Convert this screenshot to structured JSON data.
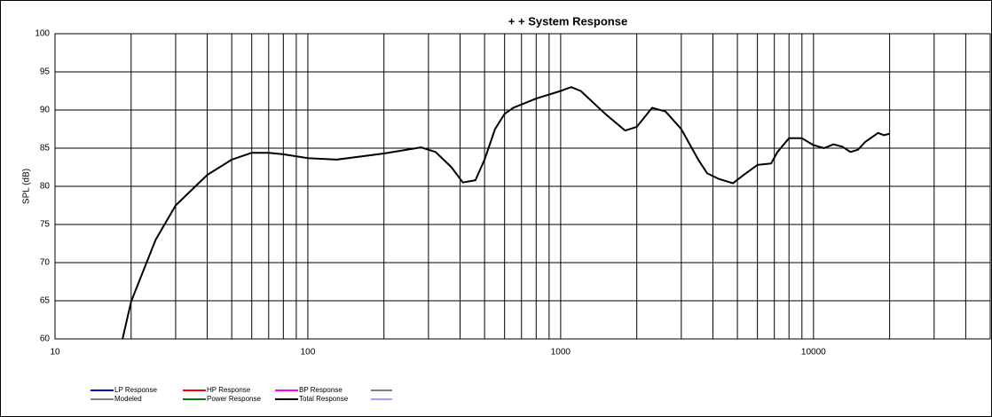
{
  "chart_data": {
    "type": "line",
    "title": "+ +  System Response",
    "ylabel": "SPL (dB)",
    "xscale": "log",
    "xlim": [
      10,
      50000
    ],
    "ylim": [
      60,
      100
    ],
    "xticks": [
      10,
      100,
      1000,
      10000
    ],
    "minor_xticks": [
      20,
      30,
      40,
      50,
      60,
      70,
      80,
      90,
      200,
      300,
      400,
      500,
      600,
      700,
      800,
      900,
      2000,
      3000,
      4000,
      5000,
      6000,
      7000,
      8000,
      9000,
      20000,
      30000,
      40000
    ],
    "yticks": [
      60,
      65,
      70,
      75,
      80,
      85,
      90,
      95,
      100
    ],
    "grid": true,
    "x": [
      18.5,
      20,
      25,
      30,
      40,
      50,
      60,
      70,
      80,
      100,
      130,
      200,
      280,
      320,
      370,
      410,
      460,
      500,
      550,
      600,
      650,
      800,
      1000,
      1100,
      1200,
      1500,
      1800,
      2000,
      2300,
      2600,
      3000,
      3500,
      3800,
      4200,
      4800,
      5300,
      6000,
      6800,
      7200,
      8000,
      9000,
      10000,
      11000,
      12000,
      13000,
      14000,
      15000,
      16000,
      18000,
      19000,
      20000
    ],
    "series": [
      {
        "name": "Total Response",
        "color": "#000000",
        "values": [
          60,
          64.9,
          73,
          77.5,
          81.5,
          83.5,
          84.4,
          84.4,
          84.2,
          83.7,
          83.5,
          84.3,
          85.1,
          84.5,
          82.5,
          80.5,
          80.8,
          83.5,
          87.5,
          89.5,
          90.3,
          91.5,
          92.5,
          93,
          92.5,
          89.5,
          87.3,
          87.8,
          90.3,
          89.8,
          87.5,
          83.5,
          81.7,
          81,
          80.4,
          81.5,
          82.8,
          83,
          84.5,
          86.3,
          86.3,
          85.4,
          85,
          85.5,
          85.2,
          84.5,
          84.8,
          85.8,
          87,
          86.7,
          86.9
        ]
      }
    ],
    "legend": [
      {
        "name": "LP Response",
        "color": "#0000c0"
      },
      {
        "name": "HP Response",
        "color": "#ff0000"
      },
      {
        "name": "BP Response",
        "color": "#ff00ff"
      },
      {
        "name": "Modeled",
        "color": "#808080"
      },
      {
        "name": "Power Response",
        "color": "#008000"
      },
      {
        "name": "Total Response",
        "color": "#000000"
      }
    ]
  }
}
